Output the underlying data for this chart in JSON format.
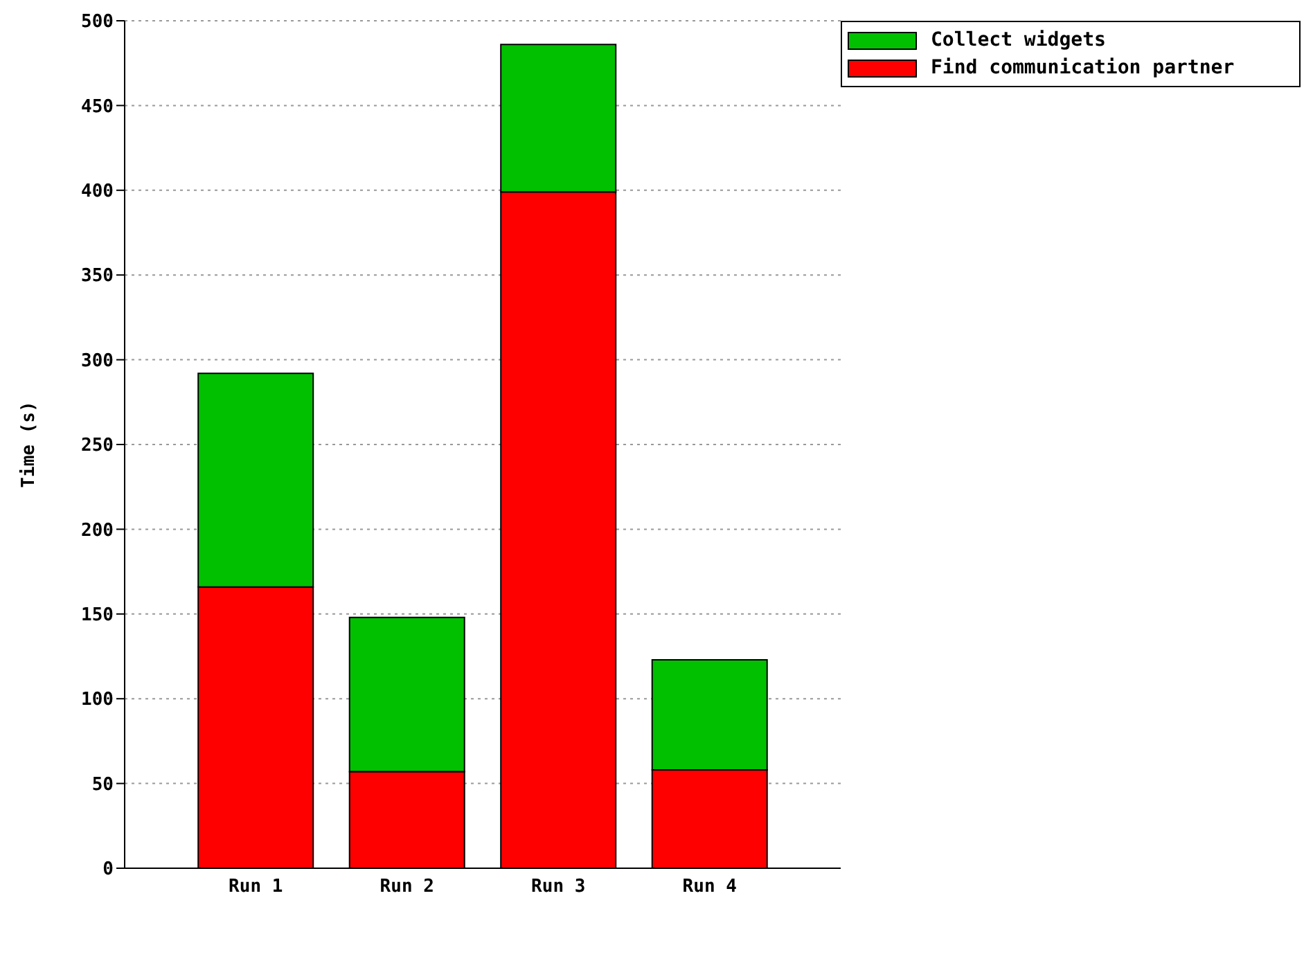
{
  "chart_data": {
    "type": "bar",
    "stacked": true,
    "ylabel": "Time (s)",
    "categories": [
      "Run 1",
      "Run 2",
      "Run 3",
      "Run 4"
    ],
    "series": [
      {
        "name": "Find communication partner",
        "color": "#ff0000",
        "values": [
          166,
          57,
          399,
          58
        ]
      },
      {
        "name": "Collect widgets",
        "color": "#00c000",
        "values": [
          126,
          91,
          87,
          65
        ]
      }
    ],
    "ylim": [
      0,
      500
    ],
    "yticks": [
      0,
      50,
      100,
      150,
      200,
      250,
      300,
      350,
      400,
      450,
      500
    ],
    "grid": "y",
    "legend": "top right"
  }
}
